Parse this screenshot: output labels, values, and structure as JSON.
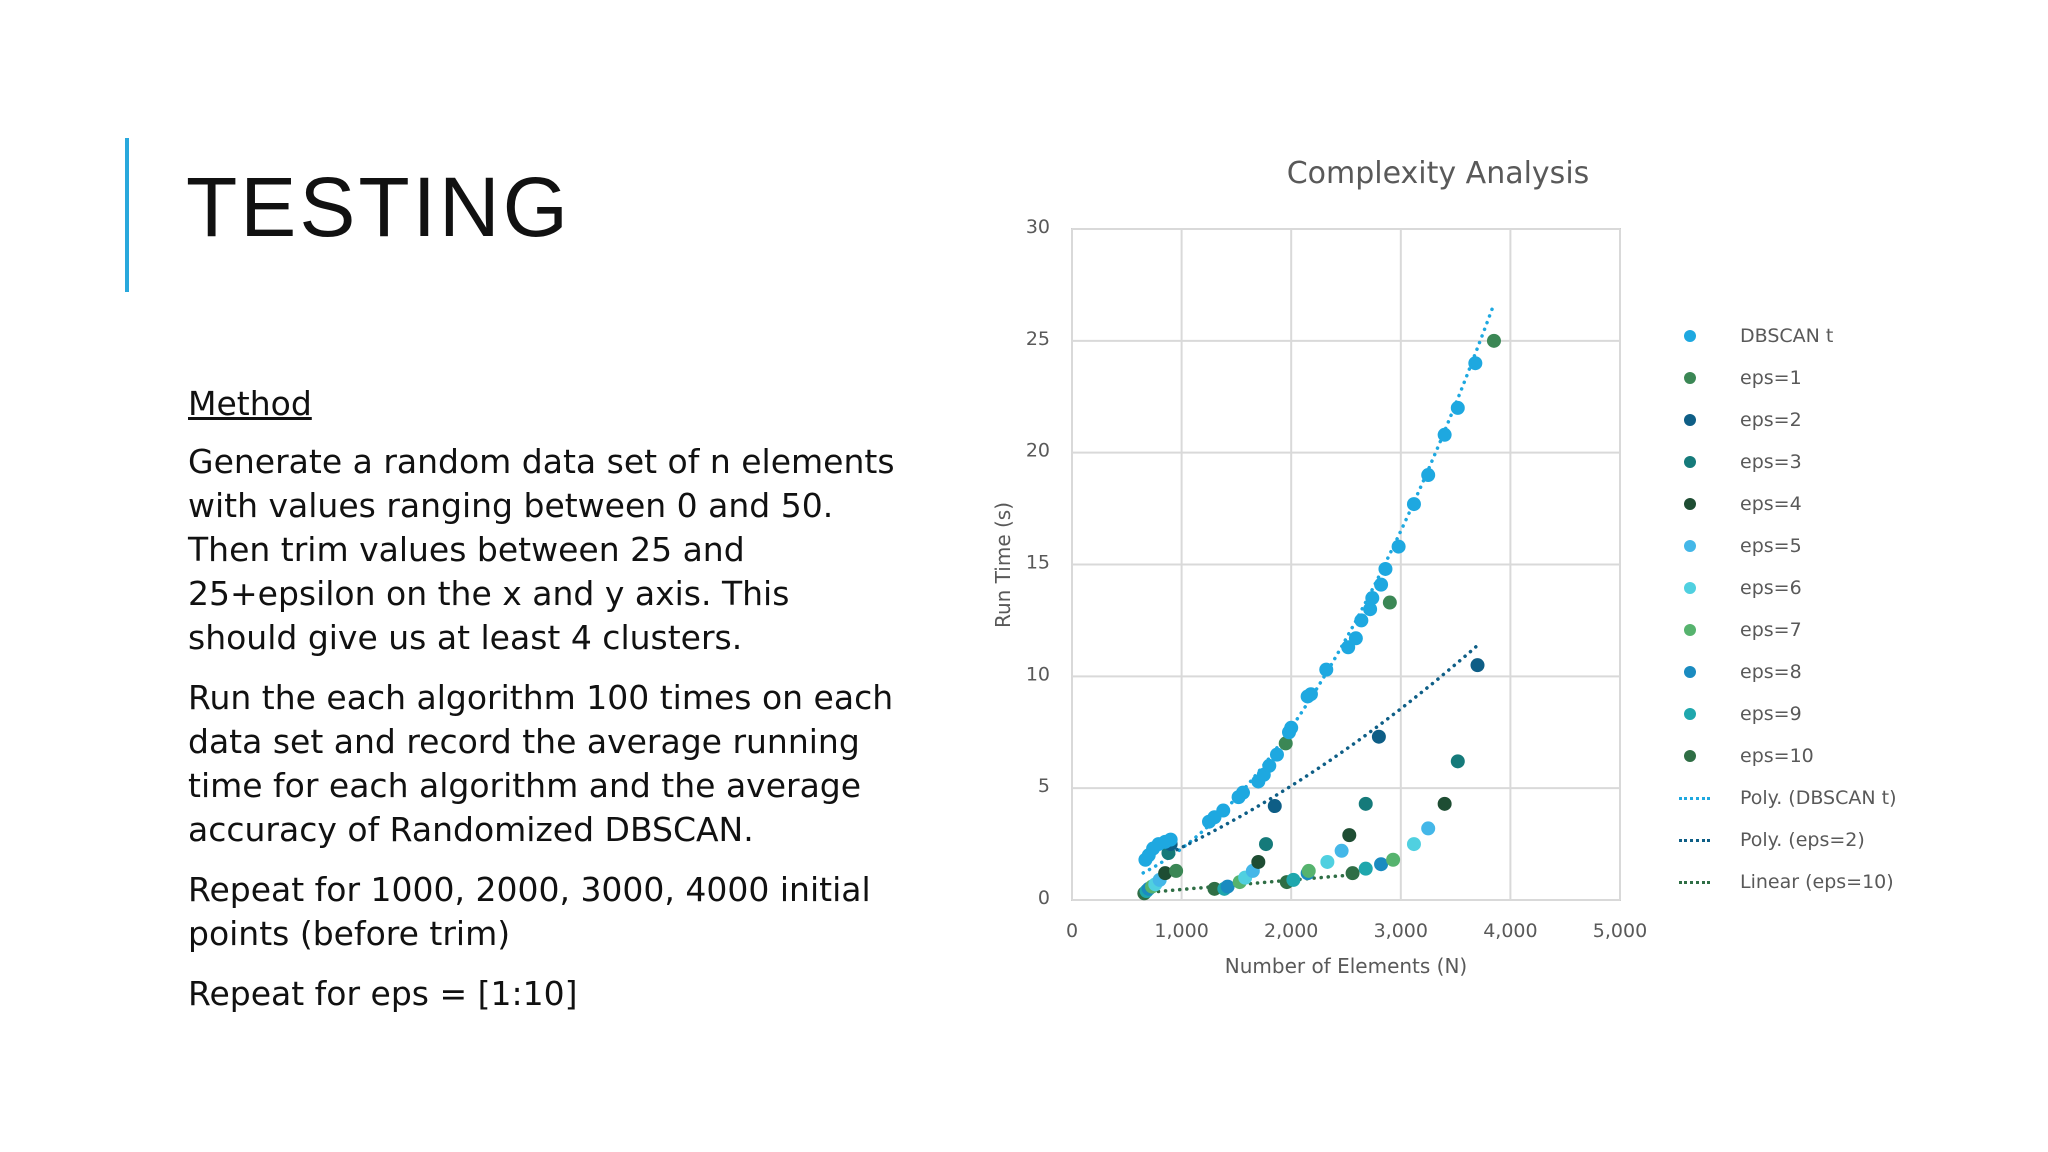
{
  "slide": {
    "title": "TESTING",
    "accent_color": "#29a8dc",
    "method_heading": "Method",
    "paragraphs": [
      "Generate a random data set of n elements with values ranging between 0 and 50. Then trim values between 25 and 25+epsilon on the x and y axis. This should give us at least 4 clusters.",
      "Run the each algorithm 100 times on each data set and record the average running time for each algorithm and the average accuracy of Randomized DBSCAN.",
      "Repeat for 1000, 2000, 3000, 4000 initial points (before trim)",
      "Repeat for eps = [1:10]"
    ]
  },
  "chart_data": {
    "type": "scatter",
    "title": "Complexity Analysis",
    "xlabel": "Number of Elements (N)",
    "ylabel": "Run Time (s)",
    "xlim": [
      0,
      5000
    ],
    "ylim": [
      0,
      30
    ],
    "xticks": [
      "0",
      "1,000",
      "2,000",
      "3,000",
      "4,000",
      "5,000"
    ],
    "yticks": [
      "0",
      "5",
      "10",
      "15",
      "20",
      "25",
      "30"
    ],
    "grid": true,
    "legend_position": "right",
    "series": [
      {
        "name": "DBSCAN t",
        "color": "#1ea8e0",
        "points": [
          [
            670,
            1.8
          ],
          [
            700,
            2.0
          ],
          [
            740,
            2.3
          ],
          [
            790,
            2.5
          ],
          [
            850,
            2.6
          ],
          [
            900,
            2.7
          ],
          [
            1250,
            3.5
          ],
          [
            1300,
            3.7
          ],
          [
            1380,
            4.0
          ],
          [
            1520,
            4.6
          ],
          [
            1560,
            4.8
          ],
          [
            1700,
            5.3
          ],
          [
            1750,
            5.6
          ],
          [
            1800,
            6.0
          ],
          [
            1870,
            6.5
          ],
          [
            1980,
            7.5
          ],
          [
            2000,
            7.7
          ],
          [
            2150,
            9.1
          ],
          [
            2180,
            9.2
          ],
          [
            2320,
            10.3
          ],
          [
            2520,
            11.3
          ],
          [
            2590,
            11.7
          ],
          [
            2640,
            12.5
          ],
          [
            2720,
            13.0
          ],
          [
            2740,
            13.5
          ],
          [
            2820,
            14.1
          ],
          [
            2860,
            14.8
          ],
          [
            2980,
            15.8
          ],
          [
            3120,
            17.7
          ],
          [
            3250,
            19.0
          ],
          [
            3400,
            20.8
          ],
          [
            3520,
            22.0
          ],
          [
            3680,
            24.0
          ]
        ]
      },
      {
        "name": "eps=1",
        "color": "#3b8755",
        "points": [
          [
            950,
            1.3
          ],
          [
            1950,
            7.0
          ],
          [
            2900,
            13.3
          ],
          [
            3850,
            25.0
          ]
        ]
      },
      {
        "name": "eps=2",
        "color": "#0e5e86",
        "points": [
          [
            900,
            2.5
          ],
          [
            1850,
            4.2
          ],
          [
            2800,
            7.3
          ],
          [
            3700,
            10.5
          ]
        ]
      },
      {
        "name": "eps=3",
        "color": "#157a7a",
        "points": [
          [
            880,
            2.1
          ],
          [
            1770,
            2.5
          ],
          [
            2680,
            4.3
          ],
          [
            3520,
            6.2
          ]
        ]
      },
      {
        "name": "eps=4",
        "color": "#1e4d33",
        "points": [
          [
            850,
            1.2
          ],
          [
            1700,
            1.7
          ],
          [
            2530,
            2.9
          ],
          [
            3400,
            4.3
          ]
        ]
      },
      {
        "name": "eps=5",
        "color": "#44b7e8",
        "points": [
          [
            800,
            0.9
          ],
          [
            1650,
            1.3
          ],
          [
            2460,
            2.2
          ],
          [
            3250,
            3.2
          ]
        ]
      },
      {
        "name": "eps=6",
        "color": "#50d0e0",
        "points": [
          [
            760,
            0.7
          ],
          [
            1580,
            1.0
          ],
          [
            2330,
            1.7
          ],
          [
            3120,
            2.5
          ]
        ]
      },
      {
        "name": "eps=7",
        "color": "#56b36e",
        "points": [
          [
            730,
            0.6
          ],
          [
            1530,
            0.8
          ],
          [
            2160,
            1.3
          ],
          [
            2930,
            1.8
          ]
        ]
      },
      {
        "name": "eps=8",
        "color": "#1a8bc0",
        "points": [
          [
            700,
            0.5
          ],
          [
            1420,
            0.6
          ],
          [
            2150,
            1.2
          ],
          [
            2820,
            1.6
          ]
        ]
      },
      {
        "name": "eps=9",
        "color": "#1fa7ad",
        "points": [
          [
            680,
            0.4
          ],
          [
            1390,
            0.5
          ],
          [
            2020,
            0.9
          ],
          [
            2680,
            1.4
          ]
        ]
      },
      {
        "name": "eps=10",
        "color": "#2f6e45",
        "points": [
          [
            660,
            0.3
          ],
          [
            1300,
            0.5
          ],
          [
            1960,
            0.8
          ],
          [
            2560,
            1.2
          ]
        ]
      }
    ],
    "trendlines": [
      {
        "name": "Poly. (DBSCAN t)",
        "color": "#1ea8e0",
        "type": "poly",
        "coeffs": [
          0.3,
          0.0003,
          1.7e-06
        ],
        "x_range": [
          650,
          3870
        ]
      },
      {
        "name": "Poly. (eps=2)",
        "color": "#0e5e86",
        "type": "poly",
        "coeffs": [
          0.3,
          0.0017,
          3.5e-07
        ],
        "x_range": [
          900,
          3700
        ]
      },
      {
        "name": "Linear (eps=10)",
        "color": "#2f6e45",
        "type": "linear",
        "coeffs": [
          0.05,
          0.00042
        ],
        "x_range": [
          660,
          2560
        ]
      }
    ]
  }
}
